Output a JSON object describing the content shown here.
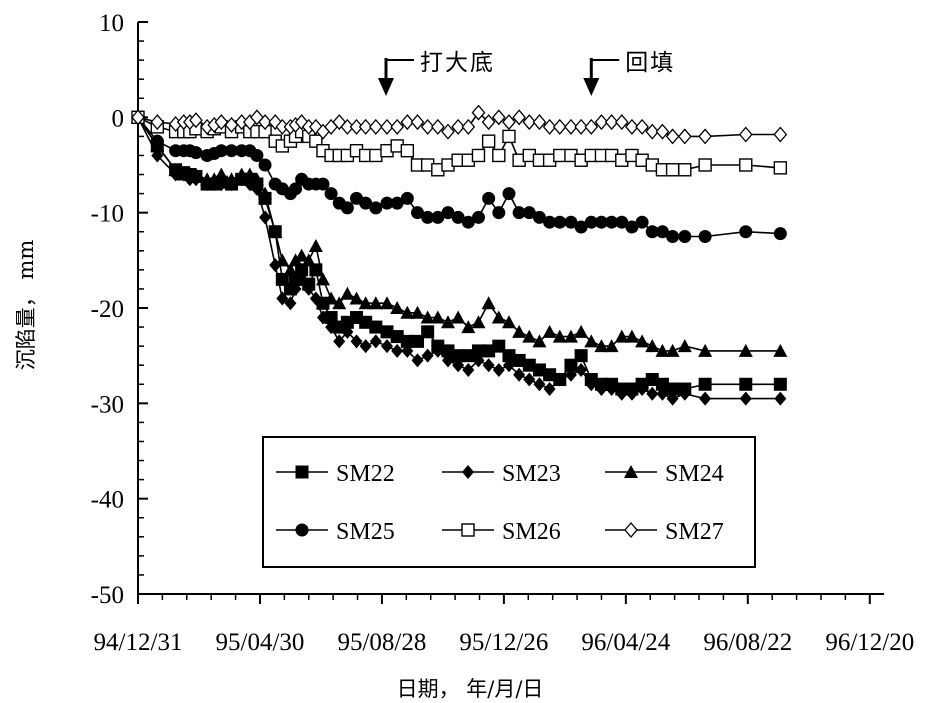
{
  "chart_data": {
    "type": "line",
    "title": "",
    "xlabel": "日期， 年/月/日",
    "ylabel": "沉陷量， mm",
    "xlim": [
      "1994-12-31",
      "1997-01-03"
    ],
    "ylim": [
      -50,
      10
    ],
    "x_ticks": [
      "94/12/31",
      "95/04/30",
      "95/08/28",
      "95/12/26",
      "96/04/24",
      "96/08/22",
      "96/12/20"
    ],
    "y_ticks": [
      "10",
      "0",
      "-10",
      "-20",
      "-30",
      "-40",
      "-50"
    ],
    "grid": false,
    "legend_position": "bottom-center",
    "annotations": [
      {
        "text": "打大底",
        "x": "1995-09-01"
      },
      {
        "text": "回填",
        "x": "1996-03-21"
      }
    ],
    "series": [
      {
        "name": "SM22",
        "marker": "filled-square",
        "x": [
          "1994-12-31",
          "1995-01-19",
          "1995-02-06",
          "1995-02-14",
          "1995-02-20",
          "1995-02-26",
          "1995-03-09",
          "1995-03-16",
          "1995-03-23",
          "1995-04-02",
          "1995-04-12",
          "1995-04-20",
          "1995-04-27",
          "1995-05-05",
          "1995-05-15",
          "1995-05-22",
          "1995-05-30",
          "1995-06-04",
          "1995-06-10",
          "1995-06-17",
          "1995-06-24",
          "1995-07-01",
          "1995-07-09",
          "1995-07-17",
          "1995-07-25",
          "1995-08-03",
          "1995-08-12",
          "1995-08-22",
          "1995-09-02",
          "1995-09-12",
          "1995-09-22",
          "1995-10-02",
          "1995-10-12",
          "1995-10-22",
          "1995-11-01",
          "1995-11-11",
          "1995-11-21",
          "1995-12-01",
          "1995-12-11",
          "1995-12-21",
          "1995-12-31",
          "1996-01-10",
          "1996-01-20",
          "1996-01-30",
          "1996-02-09",
          "1996-02-19",
          "1996-03-01",
          "1996-03-11",
          "1996-03-21",
          "1996-03-31",
          "1996-04-10",
          "1996-04-20",
          "1996-04-30",
          "1996-05-10",
          "1996-05-20",
          "1996-05-30",
          "1996-06-09",
          "1996-06-21",
          "1996-07-11",
          "1996-08-20",
          "1996-09-23"
        ],
        "y": [
          0,
          -3,
          -5.5,
          -5.8,
          -6,
          -6.2,
          -7,
          -7,
          -6.8,
          -7,
          -6.5,
          -6.5,
          -7,
          -8.5,
          -12,
          -17,
          -18,
          -17,
          -16,
          -17.5,
          -16,
          -19.5,
          -21,
          -22,
          -21.5,
          -21,
          -21.5,
          -22,
          -22.5,
          -23,
          -23.5,
          -23.5,
          -22.5,
          -24,
          -24.5,
          -25,
          -25,
          -24.5,
          -24.5,
          -24,
          -25,
          -25.5,
          -26,
          -26.5,
          -27,
          -27.5,
          -26,
          -25,
          -27.5,
          -28,
          -28,
          -28.5,
          -28.5,
          -28,
          -27.5,
          -28,
          -28.5,
          -28.5,
          -28,
          -28,
          -28
        ]
      },
      {
        "name": "SM23",
        "marker": "filled-diamond",
        "x": [
          "1994-12-31",
          "1995-01-19",
          "1995-02-06",
          "1995-02-14",
          "1995-02-20",
          "1995-02-26",
          "1995-03-09",
          "1995-03-16",
          "1995-03-23",
          "1995-04-02",
          "1995-04-12",
          "1995-04-20",
          "1995-04-27",
          "1995-05-05",
          "1995-05-15",
          "1995-05-22",
          "1995-05-30",
          "1995-06-04",
          "1995-06-10",
          "1995-06-17",
          "1995-06-24",
          "1995-07-01",
          "1995-07-09",
          "1995-07-17",
          "1995-07-25",
          "1995-08-03",
          "1995-08-12",
          "1995-08-22",
          "1995-09-02",
          "1995-09-12",
          "1995-09-22",
          "1995-10-02",
          "1995-10-12",
          "1995-10-22",
          "1995-11-01",
          "1995-11-11",
          "1995-11-21",
          "1995-12-01",
          "1995-12-11",
          "1995-12-21",
          "1995-12-31",
          "1996-01-10",
          "1996-01-20",
          "1996-01-30",
          "1996-02-09",
          "1996-02-19",
          "1996-03-01",
          "1996-03-11",
          "1996-03-21",
          "1996-03-31",
          "1996-04-10",
          "1996-04-20",
          "1996-04-30",
          "1996-05-10",
          "1996-05-20",
          "1996-05-30",
          "1996-06-09",
          "1996-06-21",
          "1996-07-11",
          "1996-08-20",
          "1996-09-23"
        ],
        "y": [
          0,
          -4,
          -6,
          -6,
          -6.5,
          -6.5,
          -7,
          -7,
          -7,
          -7,
          -6.5,
          -7,
          -7.5,
          -10.5,
          -15.5,
          -19,
          -19.5,
          -18,
          -17,
          -18,
          -19,
          -21,
          -22,
          -23.5,
          -22.5,
          -23.5,
          -24,
          -23.5,
          -24,
          -24.5,
          -24.5,
          -25.5,
          -25,
          -24.5,
          -25.5,
          -26,
          -26.5,
          -25.5,
          -26,
          -26.5,
          -26,
          -27,
          -27.5,
          -28,
          -28.5,
          -27.5,
          -27,
          -26.5,
          -28,
          -28.5,
          -28.5,
          -29,
          -29,
          -28.5,
          -29,
          -29,
          -29.5,
          -29,
          -29.5,
          -29.5,
          -29.5
        ]
      },
      {
        "name": "SM24",
        "marker": "filled-triangle",
        "x": [
          "1994-12-31",
          "1995-01-19",
          "1995-02-06",
          "1995-02-14",
          "1995-02-20",
          "1995-02-26",
          "1995-03-09",
          "1995-03-16",
          "1995-03-23",
          "1995-04-02",
          "1995-04-12",
          "1995-04-20",
          "1995-04-27",
          "1995-05-05",
          "1995-05-15",
          "1995-05-22",
          "1995-05-30",
          "1995-06-04",
          "1995-06-10",
          "1995-06-17",
          "1995-06-24",
          "1995-07-01",
          "1995-07-09",
          "1995-07-17",
          "1995-07-25",
          "1995-08-03",
          "1995-08-12",
          "1995-08-22",
          "1995-09-02",
          "1995-09-12",
          "1995-09-22",
          "1995-10-02",
          "1995-10-12",
          "1995-10-22",
          "1995-11-01",
          "1995-11-11",
          "1995-11-21",
          "1995-12-01",
          "1995-12-11",
          "1995-12-21",
          "1995-12-31",
          "1996-01-10",
          "1996-01-20",
          "1996-01-30",
          "1996-02-09",
          "1996-02-19",
          "1996-03-01",
          "1996-03-11",
          "1996-03-21",
          "1996-03-31",
          "1996-04-10",
          "1996-04-20",
          "1996-04-30",
          "1996-05-10",
          "1996-05-20",
          "1996-05-30",
          "1996-06-09",
          "1996-06-21",
          "1996-07-11",
          "1996-08-20",
          "1996-09-23"
        ],
        "y": [
          0,
          -3,
          -5.5,
          -6,
          -6,
          -6,
          -6.5,
          -6.5,
          -6,
          -6.5,
          -6,
          -6,
          -6.5,
          -8,
          -12,
          -15,
          -16,
          -15,
          -14.5,
          -15,
          -13.5,
          -17,
          -19,
          -19.5,
          -18.5,
          -19,
          -19.5,
          -19.5,
          -19.5,
          -20,
          -20.5,
          -20.5,
          -21,
          -21,
          -21.5,
          -21,
          -22,
          -21.5,
          -19.5,
          -21,
          -21.5,
          -22.5,
          -23,
          -23.5,
          -22.5,
          -23,
          -23,
          -22.5,
          -23.5,
          -24,
          -24,
          -23,
          -23,
          -23.5,
          -24,
          -24.5,
          -24.5,
          -24,
          -24.5,
          -24.5,
          -24.5
        ]
      },
      {
        "name": "SM25",
        "marker": "filled-circle",
        "x": [
          "1994-12-31",
          "1995-01-19",
          "1995-02-06",
          "1995-02-14",
          "1995-02-20",
          "1995-02-26",
          "1995-03-09",
          "1995-03-16",
          "1995-03-23",
          "1995-04-02",
          "1995-04-12",
          "1995-04-20",
          "1995-04-27",
          "1995-05-05",
          "1995-05-15",
          "1995-05-22",
          "1995-05-30",
          "1995-06-04",
          "1995-06-10",
          "1995-06-17",
          "1995-06-24",
          "1995-07-01",
          "1995-07-09",
          "1995-07-17",
          "1995-07-25",
          "1995-08-03",
          "1995-08-12",
          "1995-08-22",
          "1995-09-02",
          "1995-09-12",
          "1995-09-22",
          "1995-10-02",
          "1995-10-12",
          "1995-10-22",
          "1995-11-01",
          "1995-11-11",
          "1995-11-21",
          "1995-12-01",
          "1995-12-11",
          "1995-12-21",
          "1995-12-31",
          "1996-01-10",
          "1996-01-20",
          "1996-01-30",
          "1996-02-09",
          "1996-02-19",
          "1996-03-01",
          "1996-03-11",
          "1996-03-21",
          "1996-03-31",
          "1996-04-10",
          "1996-04-20",
          "1996-04-30",
          "1996-05-10",
          "1996-05-20",
          "1996-05-30",
          "1996-06-09",
          "1996-06-21",
          "1996-07-11",
          "1996-08-20",
          "1996-09-23"
        ],
        "y": [
          0,
          -2.5,
          -3.5,
          -3.5,
          -3.5,
          -3.7,
          -4,
          -3.8,
          -3.5,
          -3.5,
          -3.5,
          -3.5,
          -4,
          -5,
          -7,
          -7.5,
          -8,
          -7.5,
          -6.5,
          -7,
          -7,
          -7,
          -8,
          -9,
          -9.5,
          -8.5,
          -9,
          -9.5,
          -9,
          -9,
          -8.5,
          -10,
          -10.5,
          -10.5,
          -10,
          -10.5,
          -11,
          -10.5,
          -8.5,
          -10,
          -8,
          -10,
          -10,
          -10.5,
          -11,
          -11,
          -11,
          -11.5,
          -11,
          -11,
          -11,
          -11,
          -11.5,
          -11,
          -12,
          -12,
          -12.5,
          -12.5,
          -12.5,
          -12,
          -12.2
        ]
      },
      {
        "name": "SM26",
        "marker": "open-square",
        "x": [
          "1994-12-31",
          "1995-01-19",
          "1995-02-06",
          "1995-02-14",
          "1995-02-20",
          "1995-02-26",
          "1995-03-09",
          "1995-03-16",
          "1995-03-23",
          "1995-04-02",
          "1995-04-12",
          "1995-04-20",
          "1995-04-27",
          "1995-05-05",
          "1995-05-15",
          "1995-05-22",
          "1995-05-30",
          "1995-06-04",
          "1995-06-10",
          "1995-06-17",
          "1995-06-24",
          "1995-07-01",
          "1995-07-09",
          "1995-07-17",
          "1995-07-25",
          "1995-08-03",
          "1995-08-12",
          "1995-08-22",
          "1995-09-02",
          "1995-09-12",
          "1995-09-22",
          "1995-10-02",
          "1995-10-12",
          "1995-10-22",
          "1995-11-01",
          "1995-11-11",
          "1995-11-21",
          "1995-12-01",
          "1995-12-11",
          "1995-12-21",
          "1995-12-31",
          "1996-01-10",
          "1996-01-20",
          "1996-01-30",
          "1996-02-09",
          "1996-02-19",
          "1996-03-01",
          "1996-03-11",
          "1996-03-21",
          "1996-03-31",
          "1996-04-10",
          "1996-04-20",
          "1996-04-30",
          "1996-05-10",
          "1996-05-20",
          "1996-05-30",
          "1996-06-09",
          "1996-06-21",
          "1996-07-11",
          "1996-08-20",
          "1996-09-23"
        ],
        "y": [
          0,
          -1,
          -1.5,
          -1.5,
          -1.5,
          -1.2,
          -1.5,
          -1.2,
          -1,
          -1.5,
          -1,
          -1.5,
          -1.5,
          -1.5,
          -2.5,
          -3,
          -2.5,
          -2,
          -1.5,
          -2,
          -2.5,
          -3.5,
          -4,
          -4,
          -4,
          -3.5,
          -4,
          -4,
          -3.5,
          -3,
          -3.5,
          -5,
          -5,
          -5.5,
          -5,
          -4.5,
          -4.5,
          -4,
          -2.5,
          -4,
          -2,
          -4.5,
          -4,
          -4.5,
          -4.5,
          -4,
          -4,
          -4.5,
          -4,
          -4,
          -4,
          -4.5,
          -4,
          -4.5,
          -5,
          -5.5,
          -5.5,
          -5.5,
          -5,
          -5,
          -5.3
        ]
      },
      {
        "name": "SM27",
        "marker": "open-diamond",
        "x": [
          "1994-12-31",
          "1995-01-19",
          "1995-02-06",
          "1995-02-14",
          "1995-02-20",
          "1995-02-26",
          "1995-03-09",
          "1995-03-16",
          "1995-03-23",
          "1995-04-02",
          "1995-04-12",
          "1995-04-20",
          "1995-04-27",
          "1995-05-05",
          "1995-05-15",
          "1995-05-22",
          "1995-05-30",
          "1995-06-04",
          "1995-06-10",
          "1995-06-17",
          "1995-06-24",
          "1995-07-01",
          "1995-07-09",
          "1995-07-17",
          "1995-07-25",
          "1995-08-03",
          "1995-08-12",
          "1995-08-22",
          "1995-09-02",
          "1995-09-12",
          "1995-09-22",
          "1995-10-02",
          "1995-10-12",
          "1995-10-22",
          "1995-11-01",
          "1995-11-11",
          "1995-11-21",
          "1995-12-01",
          "1995-12-11",
          "1995-12-21",
          "1995-12-31",
          "1996-01-10",
          "1996-01-20",
          "1996-01-30",
          "1996-02-09",
          "1996-02-19",
          "1996-03-01",
          "1996-03-11",
          "1996-03-21",
          "1996-03-31",
          "1996-04-10",
          "1996-04-20",
          "1996-04-30",
          "1996-05-10",
          "1996-05-20",
          "1996-05-30",
          "1996-06-09",
          "1996-06-21",
          "1996-07-11",
          "1996-08-20",
          "1996-09-23"
        ],
        "y": [
          0,
          -0.5,
          -0.7,
          -0.5,
          -0.5,
          -0.3,
          -1,
          -0.8,
          -0.5,
          -0.8,
          -0.5,
          -0.5,
          0,
          -0.5,
          -0.5,
          -1,
          -1,
          -0.8,
          -0.5,
          -1,
          -1,
          -1.5,
          -1,
          -0.5,
          -1,
          -1,
          -1,
          -1,
          -1,
          -1,
          -0.5,
          -0.5,
          -1,
          -1,
          -1.5,
          -1,
          -1,
          0.5,
          -0.5,
          0,
          -0.5,
          0,
          -0.5,
          -0.5,
          -1,
          -1,
          -1,
          -1,
          -1,
          -0.5,
          -0.5,
          -0.5,
          -1,
          -1,
          -1.5,
          -1.5,
          -2,
          -2,
          -2,
          -1.8,
          -1.8
        ]
      }
    ]
  }
}
